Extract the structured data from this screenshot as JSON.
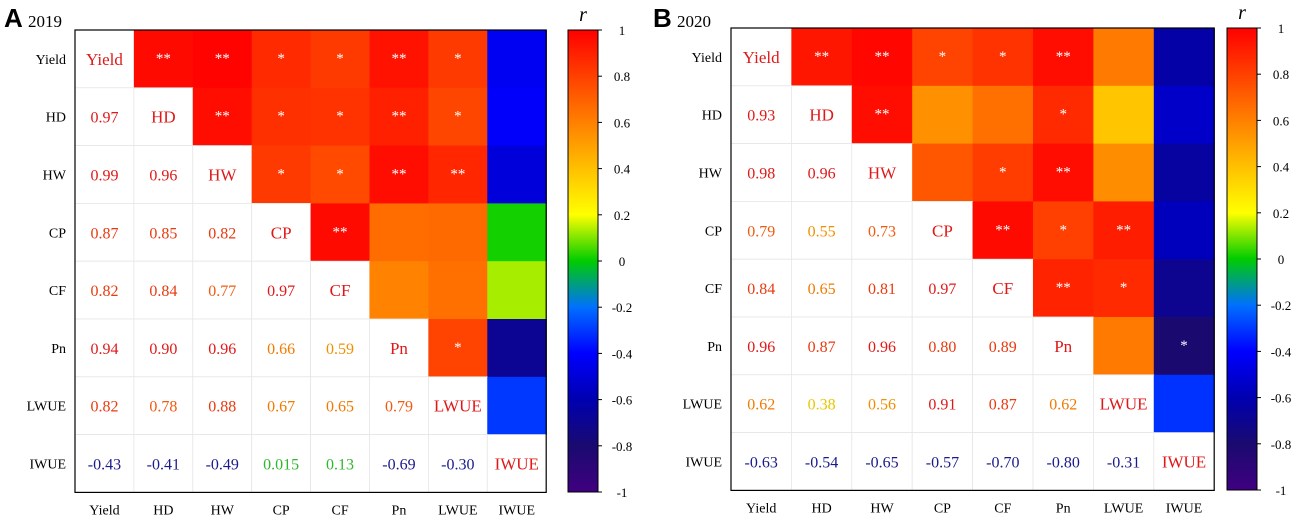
{
  "chart_data": [
    {
      "type": "heatmap",
      "panel_label": "A",
      "year": "2019",
      "variables": [
        "Yield",
        "HD",
        "HW",
        "CP",
        "CF",
        "Pn",
        "LWUE",
        "IWUE"
      ],
      "lower_triangle_values": [
        [
          "Yield",
          "",
          "",
          "",
          "",
          "",
          "",
          ""
        ],
        [
          "0.97",
          "HD",
          "",
          "",
          "",
          "",
          "",
          ""
        ],
        [
          "0.99",
          "0.96",
          "HW",
          "",
          "",
          "",
          "",
          ""
        ],
        [
          "0.87",
          "0.85",
          "0.82",
          "CP",
          "",
          "",
          "",
          ""
        ],
        [
          "0.82",
          "0.84",
          "0.77",
          "0.97",
          "CF",
          "",
          "",
          ""
        ],
        [
          "0.94",
          "0.90",
          "0.96",
          "0.66",
          "0.59",
          "Pn",
          "",
          ""
        ],
        [
          "0.82",
          "0.78",
          "0.88",
          "0.67",
          "0.65",
          "0.79",
          "LWUE",
          ""
        ],
        [
          "-0.43",
          "-0.41",
          "-0.49",
          "0.015",
          "0.13",
          "-0.69",
          "-0.30",
          "IWUE"
        ]
      ],
      "significance": [
        [
          "",
          "**",
          "**",
          "*",
          "*",
          "**",
          "*",
          ""
        ],
        [
          "",
          "",
          "**",
          "*",
          "*",
          "**",
          "*",
          ""
        ],
        [
          "",
          "",
          "",
          "*",
          "*",
          "**",
          "**",
          ""
        ],
        [
          "",
          "",
          "",
          "",
          "**",
          "",
          "",
          ""
        ],
        [
          "",
          "",
          "",
          "",
          "",
          "",
          "",
          ""
        ],
        [
          "",
          "",
          "",
          "",
          "",
          "",
          "*",
          ""
        ],
        [
          "",
          "",
          "",
          "",
          "",
          "",
          "",
          ""
        ],
        [
          "",
          "",
          "",
          "",
          "",
          "",
          "",
          ""
        ]
      ],
      "colorbar": {
        "label": "r",
        "range": [
          -1,
          1
        ],
        "ticks": [
          "1",
          "0.8",
          "0.6",
          "0.4",
          "0.2",
          "0",
          "-0.2",
          "-0.4",
          "-0.6",
          "-0.8",
          "-1"
        ]
      }
    },
    {
      "type": "heatmap",
      "panel_label": "B",
      "year": "2020",
      "variables": [
        "Yield",
        "HD",
        "HW",
        "CP",
        "CF",
        "Pn",
        "LWUE",
        "IWUE"
      ],
      "lower_triangle_values": [
        [
          "Yield",
          "",
          "",
          "",
          "",
          "",
          "",
          ""
        ],
        [
          "0.93",
          "HD",
          "",
          "",
          "",
          "",
          "",
          ""
        ],
        [
          "0.98",
          "0.96",
          "HW",
          "",
          "",
          "",
          "",
          ""
        ],
        [
          "0.79",
          "0.55",
          "0.73",
          "CP",
          "",
          "",
          "",
          ""
        ],
        [
          "0.84",
          "0.65",
          "0.81",
          "0.97",
          "CF",
          "",
          "",
          ""
        ],
        [
          "0.96",
          "0.87",
          "0.96",
          "0.80",
          "0.89",
          "Pn",
          "",
          ""
        ],
        [
          "0.62",
          "0.38",
          "0.56",
          "0.91",
          "0.87",
          "0.62",
          "LWUE",
          ""
        ],
        [
          "-0.63",
          "-0.54",
          "-0.65",
          "-0.57",
          "-0.70",
          "-0.80",
          "-0.31",
          "IWUE"
        ]
      ],
      "significance": [
        [
          "",
          "**",
          "**",
          "*",
          "*",
          "**",
          "",
          ""
        ],
        [
          "",
          "",
          "**",
          "",
          "",
          "*",
          "",
          ""
        ],
        [
          "",
          "",
          "",
          "",
          "*",
          "**",
          "",
          ""
        ],
        [
          "",
          "",
          "",
          "",
          "**",
          "*",
          "**",
          ""
        ],
        [
          "",
          "",
          "",
          "",
          "",
          "**",
          "*",
          ""
        ],
        [
          "",
          "",
          "",
          "",
          "",
          "",
          "",
          "*"
        ],
        [
          "",
          "",
          "",
          "",
          "",
          "",
          "",
          ""
        ],
        [
          "",
          "",
          "",
          "",
          "",
          "",
          "",
          ""
        ]
      ],
      "colorbar": {
        "label": "r",
        "range": [
          -1,
          1
        ],
        "ticks": [
          "1",
          "0.8",
          "0.6",
          "0.4",
          "0.2",
          "0",
          "-0.2",
          "-0.4",
          "-0.6",
          "-0.8",
          "-1"
        ]
      }
    }
  ]
}
